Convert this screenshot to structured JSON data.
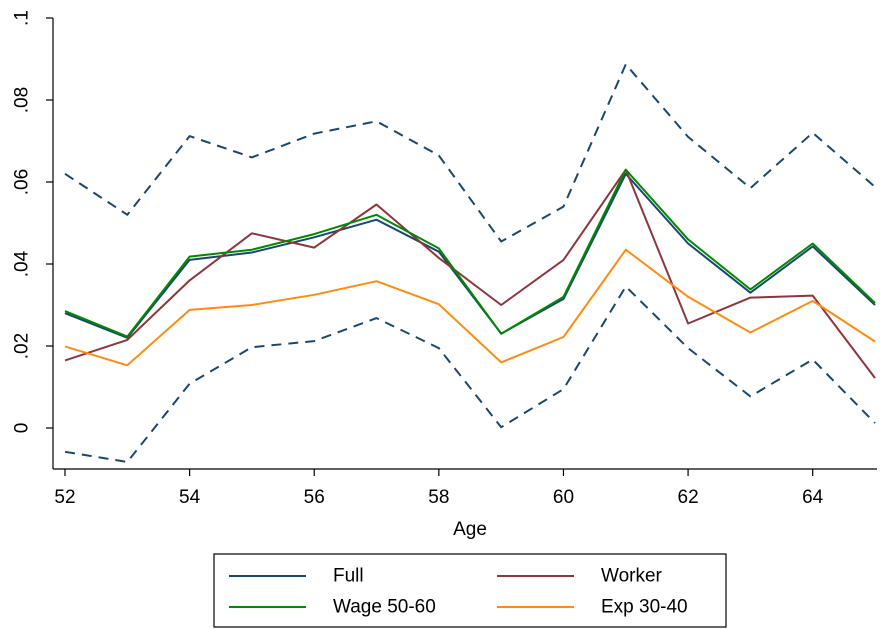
{
  "chart_data": {
    "type": "line",
    "xlabel": "Age",
    "ylabel": "",
    "xlim": [
      52,
      65
    ],
    "ylim": [
      -0.01,
      0.1
    ],
    "x": [
      52,
      53,
      54,
      55,
      56,
      57,
      58,
      59,
      60,
      61,
      62,
      63,
      64,
      65
    ],
    "x_ticks": [
      52,
      54,
      56,
      58,
      60,
      62,
      64
    ],
    "x_tick_labels": [
      "52",
      "54",
      "56",
      "58",
      "60",
      "62",
      "64"
    ],
    "y_ticks": [
      0,
      0.02,
      0.04,
      0.06,
      0.08,
      0.1
    ],
    "y_tick_labels": [
      "0",
      ".02",
      ".04",
      ".06",
      ".08",
      ".1"
    ],
    "grid": false,
    "legend_position": "bottom",
    "series": [
      {
        "name": "Full",
        "color": "#1a476f",
        "dash": "solid",
        "in_legend": true,
        "values": [
          0.028,
          0.022,
          0.041,
          0.0428,
          0.0465,
          0.0508,
          0.043,
          0.023,
          0.0315,
          0.062,
          0.045,
          0.033,
          0.0443,
          0.03
        ]
      },
      {
        "name": "Worker",
        "color": "#90353b",
        "dash": "solid",
        "in_legend": true,
        "values": [
          0.0165,
          0.0215,
          0.036,
          0.0475,
          0.044,
          0.0545,
          0.0415,
          0.03,
          0.041,
          0.063,
          0.0255,
          0.0318,
          0.0323,
          0.0122
        ]
      },
      {
        "name": "Wage 50-60",
        "color": "#008a00",
        "dash": "solid",
        "in_legend": true,
        "values": [
          0.0285,
          0.0223,
          0.0418,
          0.0435,
          0.0473,
          0.052,
          0.0438,
          0.023,
          0.032,
          0.063,
          0.046,
          0.0338,
          0.045,
          0.0305
        ]
      },
      {
        "name": "Exp 30-40",
        "color": "#ff8b12",
        "dash": "solid",
        "in_legend": true,
        "values": [
          0.0199,
          0.0153,
          0.0288,
          0.03,
          0.0325,
          0.0358,
          0.0302,
          0.016,
          0.0222,
          0.0435,
          0.032,
          0.0233,
          0.031,
          0.0211
        ]
      },
      {
        "name": "",
        "color": "#1a476f",
        "dash": "dashed",
        "in_legend": false,
        "values": [
          0.062,
          0.052,
          0.0712,
          0.066,
          0.0718,
          0.0748,
          0.0665,
          0.0455,
          0.054,
          0.0887,
          0.071,
          0.0585,
          0.072,
          0.0588
        ]
      },
      {
        "name": "",
        "color": "#1a476f",
        "dash": "dashed",
        "in_legend": false,
        "values": [
          -0.0058,
          -0.0083,
          0.0108,
          0.0197,
          0.0212,
          0.0268,
          0.0195,
          0.0002,
          0.0095,
          0.0345,
          0.0195,
          0.0077,
          0.0167,
          0.0012
        ]
      }
    ],
    "legend": [
      {
        "label": "Full",
        "color": "#1a476f"
      },
      {
        "label": "Worker",
        "color": "#90353b"
      },
      {
        "label": "Wage 50-60",
        "color": "#008a00"
      },
      {
        "label": "Exp 30-40",
        "color": "#ff8b12"
      }
    ]
  }
}
